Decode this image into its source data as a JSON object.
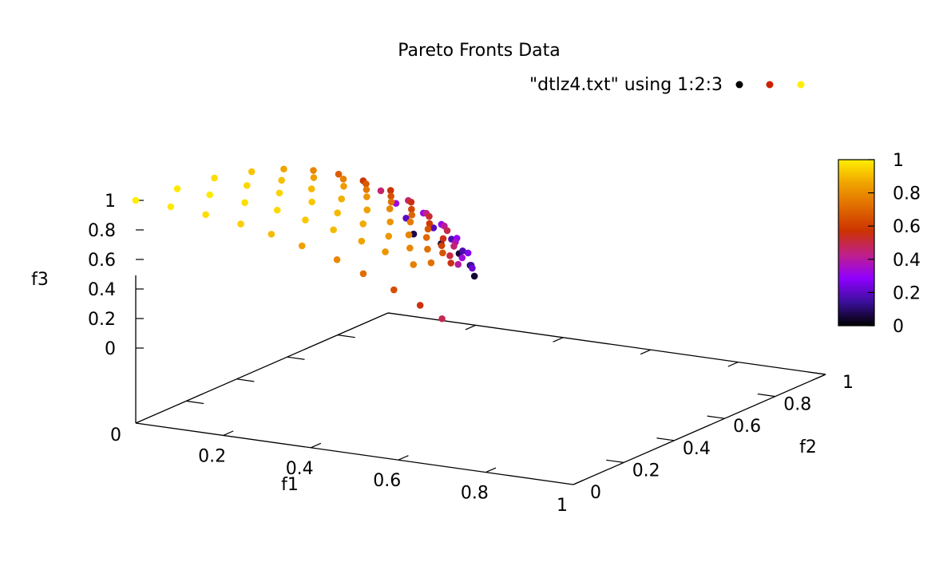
{
  "chart_data": {
    "type": "scatter",
    "title": "Pareto Fronts Data",
    "legend": {
      "label": "\"dtlz4.txt\" using 1:2:3",
      "position": "top-right"
    },
    "xlabel": "f1",
    "ylabel": "f2",
    "zlabel": "f3",
    "xlim": [
      0,
      1
    ],
    "ylim": [
      0,
      1
    ],
    "zlim": [
      0,
      1
    ],
    "x_ticks": [
      "0.2",
      "0.4",
      "0.6",
      "0.8",
      "1"
    ],
    "y_ticks": [
      "0",
      "0.2",
      "0.4",
      "0.6",
      "0.8",
      "1"
    ],
    "z_ticks": [
      "0",
      "0.2",
      "0.4",
      "0.6",
      "0.8",
      "1"
    ],
    "origin_label": "0",
    "colorbar": {
      "range": [
        0,
        1
      ],
      "ticks": [
        "0",
        "0.2",
        "0.4",
        "0.6",
        "0.8",
        "1"
      ],
      "palette": [
        "#000000",
        "#3b0f9b",
        "#8f00ff",
        "#c0208a",
        "#cc3300",
        "#e06a00",
        "#f0a300",
        "#ffee00"
      ]
    },
    "grid": false,
    "view": "3d",
    "points": [
      [
        0.0,
        0.0,
        1.0
      ],
      [
        0.08,
        0.0,
        0.99
      ],
      [
        0.16,
        0.0,
        0.97
      ],
      [
        0.24,
        0.0,
        0.94
      ],
      [
        0.31,
        0.0,
        0.9
      ],
      [
        0.38,
        0.0,
        0.85
      ],
      [
        0.46,
        0.0,
        0.79
      ],
      [
        0.52,
        0.0,
        0.72
      ],
      [
        0.59,
        0.0,
        0.64
      ],
      [
        0.65,
        0.0,
        0.56
      ],
      [
        0.7,
        0.0,
        0.49
      ],
      [
        0.02,
        0.13,
        0.99
      ],
      [
        0.1,
        0.12,
        0.99
      ],
      [
        0.18,
        0.12,
        0.97
      ],
      [
        0.26,
        0.11,
        0.96
      ],
      [
        0.33,
        0.1,
        0.93
      ],
      [
        0.4,
        0.09,
        0.9
      ],
      [
        0.47,
        0.08,
        0.86
      ],
      [
        0.53,
        0.07,
        0.82
      ],
      [
        0.6,
        0.06,
        0.77
      ],
      [
        0.03,
        0.26,
        0.97
      ],
      [
        0.11,
        0.25,
        0.96
      ],
      [
        0.19,
        0.24,
        0.95
      ],
      [
        0.27,
        0.23,
        0.93
      ],
      [
        0.34,
        0.21,
        0.9
      ],
      [
        0.41,
        0.19,
        0.87
      ],
      [
        0.48,
        0.17,
        0.83
      ],
      [
        0.54,
        0.15,
        0.79
      ],
      [
        0.6,
        0.13,
        0.73
      ],
      [
        0.04,
        0.39,
        0.92
      ],
      [
        0.12,
        0.37,
        0.91
      ],
      [
        0.2,
        0.35,
        0.9
      ],
      [
        0.28,
        0.33,
        0.88
      ],
      [
        0.35,
        0.31,
        0.85
      ],
      [
        0.42,
        0.28,
        0.82
      ],
      [
        0.48,
        0.25,
        0.78
      ],
      [
        0.54,
        0.22,
        0.73
      ],
      [
        0.05,
        0.5,
        0.86
      ],
      [
        0.13,
        0.48,
        0.85
      ],
      [
        0.21,
        0.46,
        0.84
      ],
      [
        0.28,
        0.43,
        0.82
      ],
      [
        0.35,
        0.4,
        0.79
      ],
      [
        0.42,
        0.36,
        0.76
      ],
      [
        0.48,
        0.32,
        0.71
      ],
      [
        0.54,
        0.28,
        0.66
      ],
      [
        0.06,
        0.6,
        0.78
      ],
      [
        0.14,
        0.58,
        0.77
      ],
      [
        0.21,
        0.55,
        0.75
      ],
      [
        0.29,
        0.51,
        0.73
      ],
      [
        0.36,
        0.47,
        0.7
      ],
      [
        0.42,
        0.43,
        0.66
      ],
      [
        0.48,
        0.38,
        0.61
      ],
      [
        0.53,
        0.33,
        0.55
      ],
      [
        0.06,
        0.7,
        0.68
      ],
      [
        0.14,
        0.67,
        0.67
      ],
      [
        0.22,
        0.63,
        0.65
      ],
      [
        0.29,
        0.59,
        0.62
      ],
      [
        0.36,
        0.54,
        0.59
      ],
      [
        0.42,
        0.49,
        0.55
      ],
      [
        0.47,
        0.43,
        0.5
      ],
      [
        0.07,
        0.78,
        0.58
      ],
      [
        0.15,
        0.75,
        0.57
      ],
      [
        0.22,
        0.71,
        0.55
      ],
      [
        0.29,
        0.66,
        0.52
      ],
      [
        0.36,
        0.61,
        0.49
      ],
      [
        0.41,
        0.55,
        0.45
      ],
      [
        0.46,
        0.48,
        0.4
      ],
      [
        0.07,
        0.85,
        0.46
      ],
      [
        0.15,
        0.82,
        0.45
      ],
      [
        0.22,
        0.77,
        0.43
      ],
      [
        0.29,
        0.72,
        0.41
      ],
      [
        0.35,
        0.66,
        0.37
      ],
      [
        0.4,
        0.6,
        0.33
      ],
      [
        0.07,
        0.91,
        0.33
      ],
      [
        0.15,
        0.88,
        0.32
      ],
      [
        0.22,
        0.83,
        0.31
      ],
      [
        0.29,
        0.77,
        0.29
      ],
      [
        0.35,
        0.71,
        0.26
      ],
      [
        0.4,
        0.64,
        0.23
      ],
      [
        0.07,
        0.95,
        0.2
      ],
      [
        0.15,
        0.92,
        0.19
      ],
      [
        0.22,
        0.87,
        0.18
      ],
      [
        0.28,
        0.81,
        0.17
      ],
      [
        0.34,
        0.74,
        0.15
      ],
      [
        0.07,
        0.98,
        0.07
      ],
      [
        0.15,
        0.95,
        0.06
      ],
      [
        0.22,
        0.9,
        0.06
      ],
      [
        0.28,
        0.84,
        0.05
      ],
      [
        0.33,
        0.77,
        0.05
      ]
    ]
  }
}
